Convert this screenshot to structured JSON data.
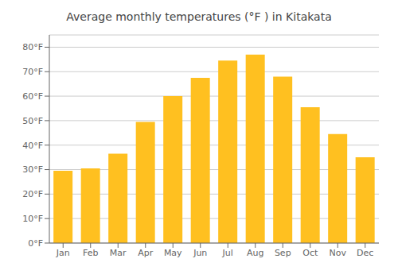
{
  "chart_data": {
    "type": "bar",
    "title": "Average monthly temperatures (°F ) in Kitakata",
    "categories": [
      "Jan",
      "Feb",
      "Mar",
      "Apr",
      "May",
      "Jun",
      "Jul",
      "Aug",
      "Sep",
      "Oct",
      "Nov",
      "Dec"
    ],
    "values": [
      29.5,
      30.5,
      36.5,
      49.5,
      60.0,
      67.5,
      74.5,
      77.0,
      68.0,
      55.5,
      44.5,
      35.0
    ],
    "color": "#FFC020",
    "ylim": [
      0,
      85
    ],
    "yticks": [
      {
        "value": 0,
        "label": "0°F"
      },
      {
        "value": 10,
        "label": "10°F"
      },
      {
        "value": 20,
        "label": "20°F"
      },
      {
        "value": 30,
        "label": "30°F"
      },
      {
        "value": 40,
        "label": "40°F"
      },
      {
        "value": 50,
        "label": "50°F"
      },
      {
        "value": 60,
        "label": "60°F"
      },
      {
        "value": 70,
        "label": "70°F"
      },
      {
        "value": 80,
        "label": "80°F"
      }
    ],
    "grid": true
  }
}
